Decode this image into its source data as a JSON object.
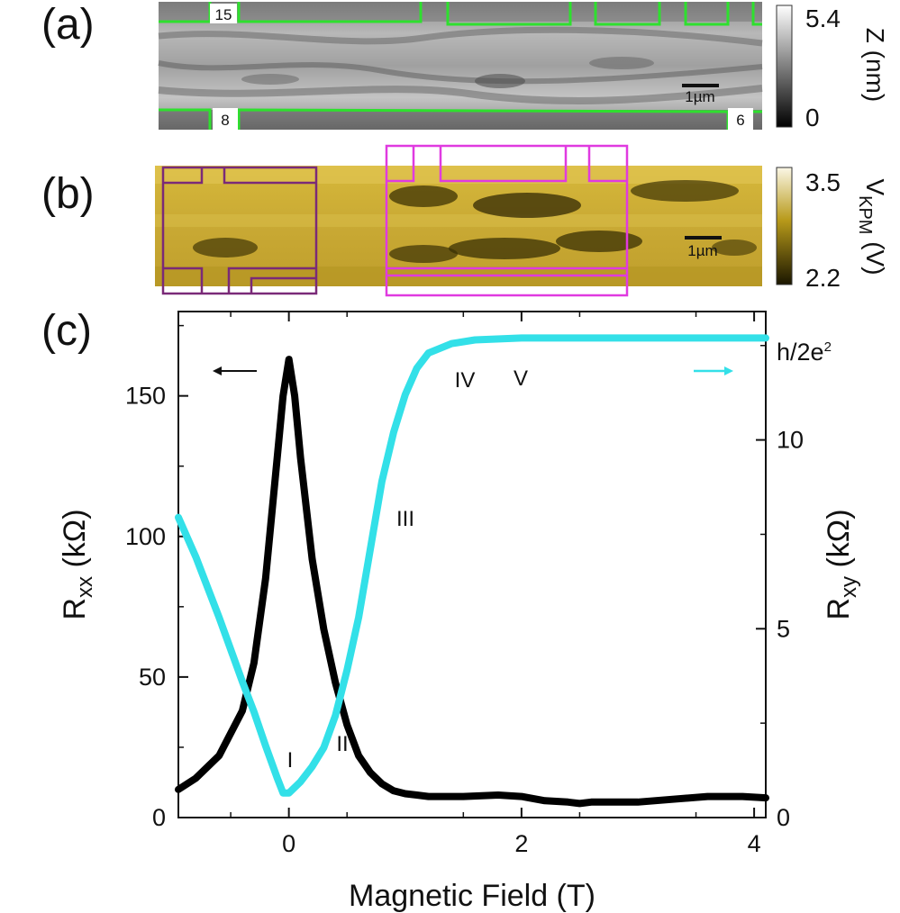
{
  "panels": {
    "a": {
      "label": "(a)",
      "electrode_labels": [
        "15",
        "8",
        "6"
      ],
      "scalebar_label": "1µm",
      "colorbar": {
        "max": "5.4",
        "min": "0",
        "title": "Z (nm)"
      }
    },
    "b": {
      "label": "(b)",
      "scalebar_label": "1µm",
      "colorbar": {
        "max": "3.5",
        "min": "2.2",
        "title_main": "V",
        "title_sub": "KPM",
        "title_unit": " (V)"
      }
    },
    "c": {
      "label": "(c)"
    }
  },
  "chart_data": {
    "type": "line",
    "xlabel": "Magnetic Field (T)",
    "ylabel_left": {
      "main": "R",
      "sub": "xx",
      "unit": " (kΩ)"
    },
    "ylabel_right": {
      "main": "R",
      "sub": "xy",
      "unit": " (kΩ)"
    },
    "xlim": [
      -0.95,
      4.1
    ],
    "ylim_left": [
      0,
      180
    ],
    "ylim_right": [
      0,
      13.4
    ],
    "x_ticks": [
      "0",
      "2",
      "4"
    ],
    "y_ticks_left": [
      "0",
      "50",
      "100",
      "150"
    ],
    "y_ticks_right": [
      "0",
      "5",
      "10"
    ],
    "right_annotation": {
      "main": "h/2e",
      "sup": "2"
    },
    "region_labels": [
      "I",
      "II",
      "III",
      "IV",
      "V"
    ],
    "series": [
      {
        "axis": "left",
        "color": "#000000",
        "x": [
          -0.95,
          -0.8,
          -0.6,
          -0.4,
          -0.3,
          -0.2,
          -0.1,
          -0.05,
          0.0,
          0.05,
          0.1,
          0.2,
          0.3,
          0.4,
          0.5,
          0.6,
          0.7,
          0.8,
          0.9,
          1.0,
          1.1,
          1.2,
          1.5,
          1.8,
          2.0,
          2.2,
          2.4,
          2.5,
          2.6,
          2.8,
          3.0,
          3.3,
          3.6,
          3.9,
          4.1
        ],
        "y": [
          10,
          14,
          22,
          38,
          55,
          85,
          128,
          150,
          163,
          150,
          128,
          92,
          67,
          48,
          33,
          22,
          16,
          12,
          9.5,
          8.5,
          8,
          7.5,
          7.5,
          8,
          7.5,
          6,
          5.5,
          5,
          5.5,
          5.5,
          5.5,
          6.5,
          7.5,
          7.5,
          7
        ]
      },
      {
        "axis": "right",
        "color": "#33e0e8",
        "x": [
          -0.95,
          -0.8,
          -0.6,
          -0.4,
          -0.3,
          -0.2,
          -0.1,
          -0.05,
          0.0,
          0.1,
          0.2,
          0.3,
          0.4,
          0.5,
          0.6,
          0.7,
          0.8,
          0.9,
          1.0,
          1.1,
          1.2,
          1.4,
          1.6,
          2.0,
          2.5,
          3.0,
          3.5,
          4.1
        ],
        "y": [
          7.95,
          6.9,
          5.3,
          3.6,
          2.8,
          1.9,
          1.05,
          0.65,
          0.65,
          0.95,
          1.35,
          1.85,
          2.7,
          3.9,
          5.3,
          7.1,
          8.9,
          10.2,
          11.2,
          11.9,
          12.3,
          12.55,
          12.65,
          12.7,
          12.7,
          12.7,
          12.7,
          12.7
        ]
      }
    ]
  }
}
